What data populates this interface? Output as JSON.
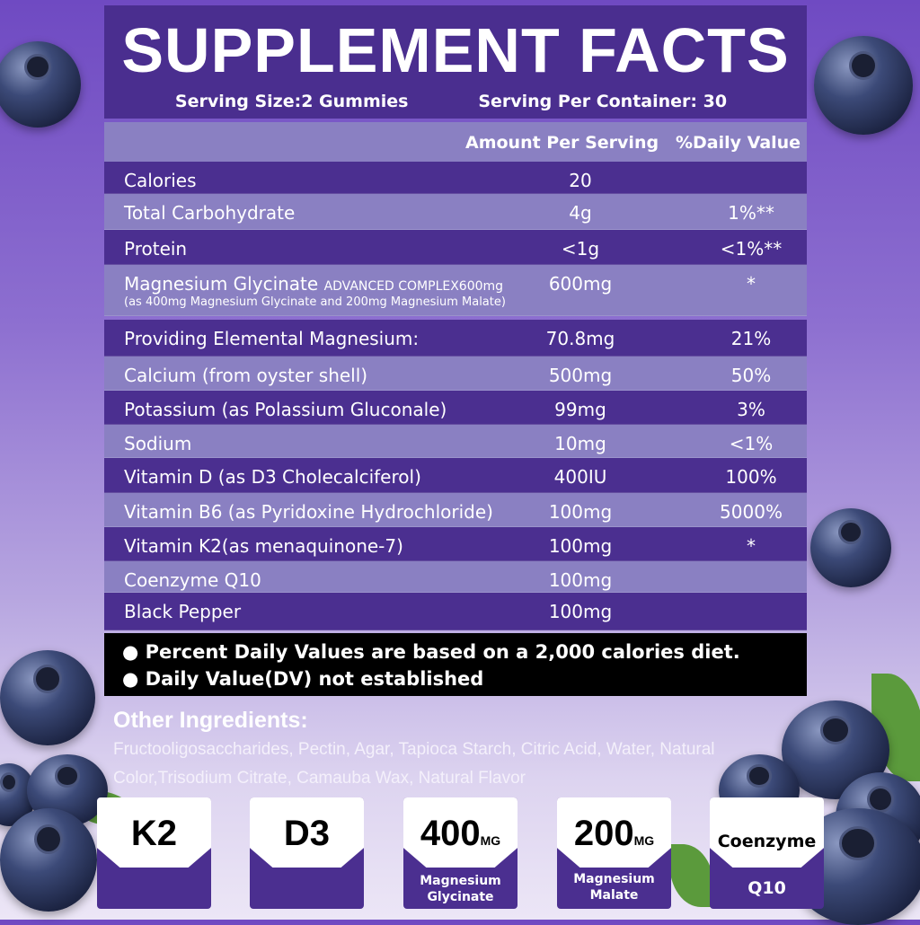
{
  "header": {
    "title": "SUPPLEMENT FACTS",
    "serving_size": "Serving Size:2 Gummies",
    "servings_per_container": "Serving Per Container: 30"
  },
  "columns": {
    "amount": "Amount Per Serving",
    "dv": "%Daily Value"
  },
  "rows": [
    {
      "name": "Calories",
      "amount": "20",
      "dv": ""
    },
    {
      "name": "Total Carbohydrate",
      "amount": "4g",
      "dv": "1%**"
    },
    {
      "name": "Protein",
      "amount": "<1g",
      "dv": "<1%**"
    },
    {
      "name": "Magnesium Glycinate",
      "name_suffix": "ADVANCED COMPLEX600mg",
      "sub": "(as 400mg Magnesium Glycinate and 200mg Magnesium Malate)",
      "amount": "600mg",
      "dv": "*"
    },
    {
      "name": "Providing Elemental Magnesium:",
      "amount": "70.8mg",
      "dv": "21%"
    },
    {
      "name": "Calcium (from oyster shell)",
      "amount": "500mg",
      "dv": "50%"
    },
    {
      "name": "Potassium (as Polassium Gluconale)",
      "amount": "99mg",
      "dv": "3%"
    },
    {
      "name": "Sodium",
      "amount": "10mg",
      "dv": "<1%"
    },
    {
      "name": "Vitamin D (as D3 Cholecalciferol)",
      "amount": "400IU",
      "dv": "100%"
    },
    {
      "name": "Vitamin B6 (as Pyridoxine Hydrochloride)",
      "amount": "100mg",
      "dv": "5000%"
    },
    {
      "name": "Vitamin K2(as menaquinone-7)",
      "amount": "100mg",
      "dv": "*"
    },
    {
      "name": "Coenzyme Q10",
      "amount": "100mg",
      "dv": ""
    },
    {
      "name": "Black Pepper",
      "amount": "100mg",
      "dv": ""
    }
  ],
  "footnotes": [
    "● Percent Daily Values are based on a 2,000 calories diet.",
    "● Daily Value(DV) not established"
  ],
  "other_ingredients": {
    "title": "Other Ingredients:",
    "text": "Fructooligosaccharides, Pectin, Agar, Tapioca Starch, Citric Acid, Water, Natural Color,Trisodium Citrate, Camauba Wax, Natural Flavor"
  },
  "badges": [
    {
      "big": "K2",
      "unit": "",
      "label1": "",
      "label2": ""
    },
    {
      "big": "D3",
      "unit": "",
      "label1": "",
      "label2": ""
    },
    {
      "big": "400",
      "unit": "MG",
      "label1": "Magnesium",
      "label2": "Glycinate"
    },
    {
      "big": "200",
      "unit": "MG",
      "label1": "Magnesium",
      "label2": "Malate"
    },
    {
      "mid": "Coenzyme",
      "label1": "Q10"
    }
  ],
  "colors": {
    "dark_row": "#4b2f90",
    "light_row": "#8a80c2",
    "footer": "#000000"
  }
}
